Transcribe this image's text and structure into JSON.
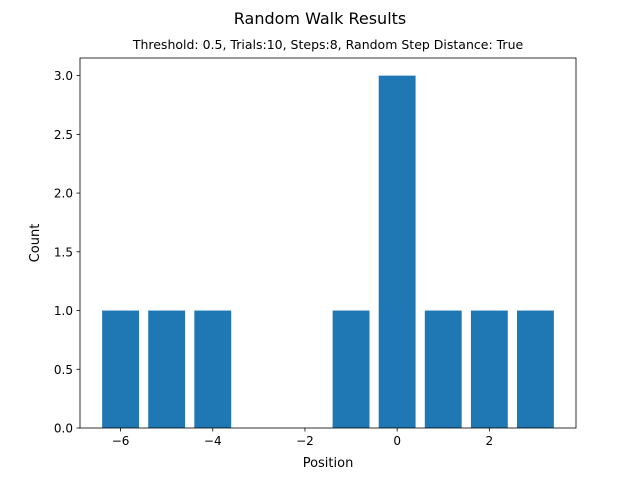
{
  "chart_data": {
    "type": "bar",
    "title": "Random Walk Results",
    "subtitle": "Threshold: 0.5, Trials:10, Steps:8, Random Step Distance: True",
    "xlabel": "Position",
    "ylabel": "Count",
    "x": [
      -6,
      -5,
      -4,
      -1,
      0,
      1,
      2,
      3
    ],
    "values": [
      1,
      1,
      1,
      1,
      3,
      1,
      1,
      1
    ],
    "bar_width": 0.8,
    "xlim": [
      -6.88,
      3.88
    ],
    "ylim": [
      0,
      3.15
    ],
    "xticks": [
      -6,
      -4,
      -2,
      0,
      2
    ],
    "xtick_labels": [
      "−6",
      "−4",
      "−2",
      "0",
      "2"
    ],
    "yticks": [
      0,
      0.5,
      1,
      1.5,
      2,
      2.5,
      3
    ],
    "ytick_labels": [
      "0.0",
      "0.5",
      "1.0",
      "1.5",
      "2.0",
      "2.5",
      "3.0"
    ],
    "bar_color": "#1f77b4",
    "grid": false,
    "legend": false
  }
}
